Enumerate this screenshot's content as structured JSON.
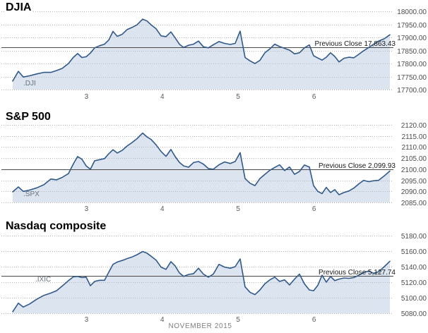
{
  "page": {
    "month_label": "NOVEMBER 2015"
  },
  "colors": {
    "line": "#30598a",
    "fill": "#dce4ef",
    "grid": "#b5b5b5",
    "prev_close_line": "#4a4a4a",
    "axis_text": "#4d4d4d",
    "tick_text": "#5a5a5a",
    "ticker_text": "#66727f",
    "annotation_text": "#1a1a1a",
    "background": "#ffffff"
  },
  "chart_data": [
    {
      "type": "area",
      "title": "DJIA",
      "ticker": ".DJI",
      "prev_close_label": "Previous Close",
      "prev_close_display": "17,863.43",
      "prev_close": 17863.43,
      "ylim": [
        17700,
        18000
      ],
      "y_ticks": [
        18000,
        17950,
        17900,
        17850,
        17800,
        17750,
        17700
      ],
      "x_tick_labels": [
        "3",
        "4",
        "5",
        "6"
      ],
      "x_tick_days": [
        1,
        2,
        3,
        4
      ],
      "grid": true,
      "x_days": [
        0.028,
        0.102,
        0.168,
        0.251,
        0.344,
        0.438,
        0.531,
        0.605,
        0.68,
        0.763,
        0.829,
        0.884,
        0.94,
        0.996,
        1.052,
        1.108,
        1.173,
        1.238,
        1.294,
        1.35,
        1.406,
        1.471,
        1.536,
        1.601,
        1.667,
        1.741,
        1.797,
        1.853,
        1.918,
        1.983,
        2.048,
        2.114,
        2.169,
        2.225,
        2.281,
        2.346,
        2.412,
        2.477,
        2.542,
        2.607,
        2.672,
        2.747,
        2.821,
        2.896,
        2.961,
        3.026,
        3.091,
        3.156,
        3.222,
        3.287,
        3.352,
        3.417,
        3.482,
        3.547,
        3.613,
        3.678,
        3.743,
        3.808,
        3.873,
        3.939,
        3.994,
        4.05,
        4.106,
        4.162,
        4.218,
        4.274,
        4.33,
        4.395,
        4.46,
        4.525,
        4.59,
        4.655,
        4.721,
        4.786,
        4.851,
        4.926,
        5.0
      ],
      "values": [
        17733,
        17770,
        17748,
        17753,
        17760,
        17766,
        17766,
        17773,
        17781,
        17800,
        17824,
        17838,
        17823,
        17826,
        17840,
        17860,
        17868,
        17874,
        17890,
        17923,
        17904,
        17912,
        17930,
        17938,
        17948,
        17970,
        17963,
        17948,
        17933,
        17906,
        17903,
        17921,
        17898,
        17874,
        17861,
        17870,
        17874,
        17886,
        17864,
        17860,
        17872,
        17884,
        17877,
        17873,
        17877,
        17924,
        17823,
        17810,
        17800,
        17812,
        17841,
        17856,
        17874,
        17865,
        17858,
        17851,
        17837,
        17841,
        17860,
        17871,
        17830,
        17821,
        17813,
        17824,
        17841,
        17827,
        17806,
        17820,
        17824,
        17822,
        17835,
        17849,
        17861,
        17874,
        17886,
        17895,
        17910
      ]
    },
    {
      "type": "area",
      "title": "S&P 500",
      "ticker": ".SPX",
      "prev_close_label": "Previous Close",
      "prev_close_display": "2,099.93",
      "prev_close": 2099.93,
      "ylim": [
        2085,
        2120
      ],
      "y_ticks": [
        2120,
        2115,
        2110,
        2105,
        2100,
        2095,
        2090,
        2085
      ],
      "x_tick_labels": [
        "3",
        "4",
        "5",
        "6"
      ],
      "x_tick_days": [
        1,
        2,
        3,
        4
      ],
      "grid": true,
      "x_days": [
        0.028,
        0.102,
        0.168,
        0.251,
        0.344,
        0.438,
        0.531,
        0.605,
        0.68,
        0.763,
        0.829,
        0.884,
        0.94,
        0.996,
        1.052,
        1.108,
        1.173,
        1.238,
        1.294,
        1.35,
        1.406,
        1.471,
        1.536,
        1.601,
        1.667,
        1.741,
        1.797,
        1.853,
        1.918,
        1.983,
        2.048,
        2.114,
        2.169,
        2.225,
        2.281,
        2.346,
        2.412,
        2.477,
        2.542,
        2.607,
        2.672,
        2.747,
        2.821,
        2.896,
        2.961,
        3.026,
        3.091,
        3.156,
        3.222,
        3.287,
        3.352,
        3.417,
        3.482,
        3.547,
        3.613,
        3.678,
        3.743,
        3.808,
        3.873,
        3.939,
        3.994,
        4.05,
        4.106,
        4.162,
        4.218,
        4.274,
        4.33,
        4.395,
        4.46,
        4.525,
        4.59,
        4.655,
        4.721,
        4.786,
        4.851,
        4.926,
        5.0
      ],
      "values": [
        2089.8,
        2092.0,
        2090.0,
        2090.6,
        2091.6,
        2093.0,
        2095.6,
        2095.2,
        2096.3,
        2098.0,
        2102.5,
        2105.7,
        2104.5,
        2101.5,
        2100.0,
        2103.8,
        2104.3,
        2104.8,
        2107.0,
        2108.8,
        2107.3,
        2108.5,
        2110.5,
        2112.0,
        2113.8,
        2116.3,
        2114.6,
        2113.4,
        2111.0,
        2108.0,
        2105.8,
        2108.9,
        2105.7,
        2103.1,
        2101.5,
        2100.9,
        2103.0,
        2103.5,
        2102.3,
        2100.3,
        2100.0,
        2102.0,
        2103.3,
        2102.6,
        2103.5,
        2107.5,
        2095.8,
        2093.7,
        2092.6,
        2095.8,
        2097.7,
        2099.5,
        2100.8,
        2102.0,
        2099.4,
        2101.0,
        2097.7,
        2099.0,
        2101.9,
        2101.0,
        2092.6,
        2090.0,
        2089.0,
        2091.8,
        2089.5,
        2090.8,
        2088.5,
        2089.5,
        2090.2,
        2091.5,
        2093.4,
        2095.0,
        2094.4,
        2094.8,
        2095.0,
        2097.0,
        2099.2
      ]
    },
    {
      "type": "area",
      "title": "Nasdaq composite",
      "ticker": ".IXIC",
      "prev_close_label": "Previous Close",
      "prev_close_display": "5,127.74",
      "prev_close": 5127.74,
      "ylim": [
        5080,
        5180
      ],
      "y_ticks": [
        5180,
        5160,
        5140,
        5120,
        5100,
        5080
      ],
      "x_tick_labels": [
        "3",
        "4",
        "5",
        "6"
      ],
      "x_tick_days": [
        1,
        2,
        3,
        4
      ],
      "grid": true,
      "x_days": [
        0.028,
        0.102,
        0.168,
        0.251,
        0.344,
        0.438,
        0.531,
        0.605,
        0.68,
        0.763,
        0.829,
        0.884,
        0.94,
        0.996,
        1.052,
        1.108,
        1.173,
        1.238,
        1.294,
        1.35,
        1.406,
        1.471,
        1.536,
        1.601,
        1.667,
        1.741,
        1.797,
        1.853,
        1.918,
        1.983,
        2.048,
        2.114,
        2.169,
        2.225,
        2.281,
        2.346,
        2.412,
        2.477,
        2.542,
        2.607,
        2.672,
        2.747,
        2.821,
        2.896,
        2.961,
        3.026,
        3.091,
        3.156,
        3.222,
        3.287,
        3.352,
        3.417,
        3.482,
        3.547,
        3.613,
        3.678,
        3.743,
        3.808,
        3.873,
        3.939,
        3.994,
        4.05,
        4.106,
        4.162,
        4.218,
        4.274,
        4.33,
        4.395,
        4.46,
        4.525,
        4.59,
        4.655,
        4.721,
        4.786,
        4.851,
        4.926,
        5.0
      ],
      "values": [
        5082,
        5093,
        5088,
        5092,
        5098,
        5103,
        5106,
        5109,
        5115,
        5122,
        5127,
        5127.5,
        5126,
        5126.5,
        5115.5,
        5121,
        5122.5,
        5122.5,
        5133,
        5143,
        5146,
        5148,
        5150.5,
        5152.5,
        5155.5,
        5159.5,
        5157.5,
        5153.5,
        5148.5,
        5139.5,
        5136.5,
        5146.5,
        5141,
        5132,
        5127.5,
        5130,
        5131,
        5138,
        5130.5,
        5126.5,
        5130.5,
        5143,
        5139.5,
        5138,
        5140,
        5150,
        5114,
        5107,
        5104,
        5110,
        5118,
        5123,
        5126.5,
        5121,
        5123,
        5116.5,
        5124,
        5130.5,
        5118,
        5110,
        5109,
        5116,
        5129,
        5120,
        5127.5,
        5122,
        5124,
        5125.5,
        5125,
        5126,
        5129,
        5132.5,
        5134.5,
        5131.5,
        5133.5,
        5140,
        5147
      ]
    }
  ]
}
